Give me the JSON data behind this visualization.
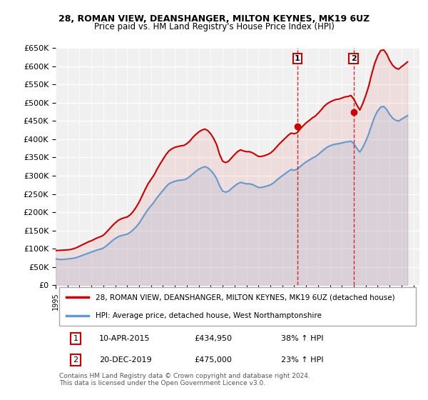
{
  "title": "28, ROMAN VIEW, DEANSHANGER, MILTON KEYNES, MK19 6UZ",
  "subtitle": "Price paid vs. HM Land Registry's House Price Index (HPI)",
  "ylabel_format": "£{0}K",
  "ylim": [
    0,
    650000
  ],
  "yticks": [
    0,
    50000,
    100000,
    150000,
    200000,
    250000,
    300000,
    350000,
    400000,
    450000,
    500000,
    550000,
    600000,
    650000
  ],
  "xlim_start": 1995.0,
  "xlim_end": 2025.5,
  "background_color": "#ffffff",
  "plot_bg_color": "#f0f0f0",
  "grid_color": "#ffffff",
  "red_color": "#cc0000",
  "blue_color": "#6699cc",
  "transaction1_x": 2015.27,
  "transaction1_y": 434950,
  "transaction2_x": 2019.97,
  "transaction2_y": 475000,
  "legend_label_red": "28, ROMAN VIEW, DEANSHANGER, MILTON KEYNES, MK19 6UZ (detached house)",
  "legend_label_blue": "HPI: Average price, detached house, West Northamptonshire",
  "table_rows": [
    [
      "1",
      "10-APR-2015",
      "£434,950",
      "38% ↑ HPI"
    ],
    [
      "2",
      "20-DEC-2019",
      "£475,000",
      "23% ↑ HPI"
    ]
  ],
  "footnote": "Contains HM Land Registry data © Crown copyright and database right 2024.\nThis data is licensed under the Open Government Licence v3.0.",
  "hpi_data": {
    "years": [
      1995.0,
      1995.25,
      1995.5,
      1995.75,
      1996.0,
      1996.25,
      1996.5,
      1996.75,
      1997.0,
      1997.25,
      1997.5,
      1997.75,
      1998.0,
      1998.25,
      1998.5,
      1998.75,
      1999.0,
      1999.25,
      1999.5,
      1999.75,
      2000.0,
      2000.25,
      2000.5,
      2000.75,
      2001.0,
      2001.25,
      2001.5,
      2001.75,
      2002.0,
      2002.25,
      2002.5,
      2002.75,
      2003.0,
      2003.25,
      2003.5,
      2003.75,
      2004.0,
      2004.25,
      2004.5,
      2004.75,
      2005.0,
      2005.25,
      2005.5,
      2005.75,
      2006.0,
      2006.25,
      2006.5,
      2006.75,
      2007.0,
      2007.25,
      2007.5,
      2007.75,
      2008.0,
      2008.25,
      2008.5,
      2008.75,
      2009.0,
      2009.25,
      2009.5,
      2009.75,
      2010.0,
      2010.25,
      2010.5,
      2010.75,
      2011.0,
      2011.25,
      2011.5,
      2011.75,
      2012.0,
      2012.25,
      2012.5,
      2012.75,
      2013.0,
      2013.25,
      2013.5,
      2013.75,
      2014.0,
      2014.25,
      2014.5,
      2014.75,
      2015.0,
      2015.25,
      2015.5,
      2015.75,
      2016.0,
      2016.25,
      2016.5,
      2016.75,
      2017.0,
      2017.25,
      2017.5,
      2017.75,
      2018.0,
      2018.25,
      2018.5,
      2018.75,
      2019.0,
      2019.25,
      2019.5,
      2019.75,
      2020.0,
      2020.25,
      2020.5,
      2020.75,
      2021.0,
      2021.25,
      2021.5,
      2021.75,
      2022.0,
      2022.25,
      2022.5,
      2022.75,
      2023.0,
      2023.25,
      2023.5,
      2023.75,
      2024.0,
      2024.25,
      2024.5
    ],
    "hpi_values": [
      72000,
      71000,
      70500,
      71000,
      72000,
      73000,
      74000,
      76000,
      79000,
      82000,
      85000,
      88000,
      91000,
      94000,
      97000,
      99000,
      102000,
      108000,
      115000,
      122000,
      128000,
      133000,
      136000,
      138000,
      140000,
      145000,
      152000,
      160000,
      170000,
      183000,
      196000,
      208000,
      218000,
      228000,
      240000,
      250000,
      260000,
      270000,
      278000,
      282000,
      285000,
      287000,
      288000,
      289000,
      292000,
      298000,
      305000,
      312000,
      318000,
      322000,
      325000,
      322000,
      315000,
      305000,
      292000,
      272000,
      258000,
      255000,
      258000,
      265000,
      272000,
      278000,
      282000,
      280000,
      278000,
      278000,
      276000,
      272000,
      268000,
      268000,
      270000,
      272000,
      275000,
      280000,
      287000,
      294000,
      300000,
      306000,
      312000,
      317000,
      315000,
      318000,
      325000,
      332000,
      338000,
      343000,
      348000,
      352000,
      358000,
      365000,
      372000,
      378000,
      382000,
      385000,
      387000,
      388000,
      390000,
      392000,
      393000,
      395000,
      388000,
      375000,
      365000,
      378000,
      395000,
      415000,
      440000,
      462000,
      478000,
      488000,
      490000,
      482000,
      468000,
      458000,
      452000,
      450000,
      455000,
      460000,
      465000
    ],
    "property_values": [
      95000,
      95500,
      96000,
      96500,
      97000,
      98000,
      100000,
      103000,
      107000,
      111000,
      115000,
      119000,
      122000,
      126000,
      130000,
      133000,
      137000,
      145000,
      154000,
      163000,
      171000,
      178000,
      182000,
      185000,
      187000,
      193000,
      202000,
      214000,
      228000,
      245000,
      262000,
      278000,
      290000,
      302000,
      318000,
      332000,
      345000,
      358000,
      368000,
      374000,
      378000,
      380000,
      382000,
      383000,
      388000,
      395000,
      405000,
      413000,
      420000,
      425000,
      428000,
      424000,
      415000,
      402000,
      385000,
      358000,
      340000,
      336000,
      340000,
      349000,
      358000,
      366000,
      371000,
      368000,
      366000,
      366000,
      363000,
      358000,
      353000,
      353000,
      355000,
      358000,
      362000,
      369000,
      378000,
      387000,
      395000,
      403000,
      411000,
      417000,
      415000,
      418000,
      428000,
      437000,
      445000,
      451000,
      458000,
      463000,
      471000,
      480000,
      490000,
      497000,
      502000,
      506000,
      509000,
      510000,
      513000,
      516000,
      517000,
      520000,
      510000,
      494000,
      480000,
      498000,
      520000,
      546000,
      579000,
      608000,
      629000,
      643000,
      645000,
      634000,
      616000,
      603000,
      595000,
      592000,
      599000,
      605000,
      612000
    ]
  }
}
